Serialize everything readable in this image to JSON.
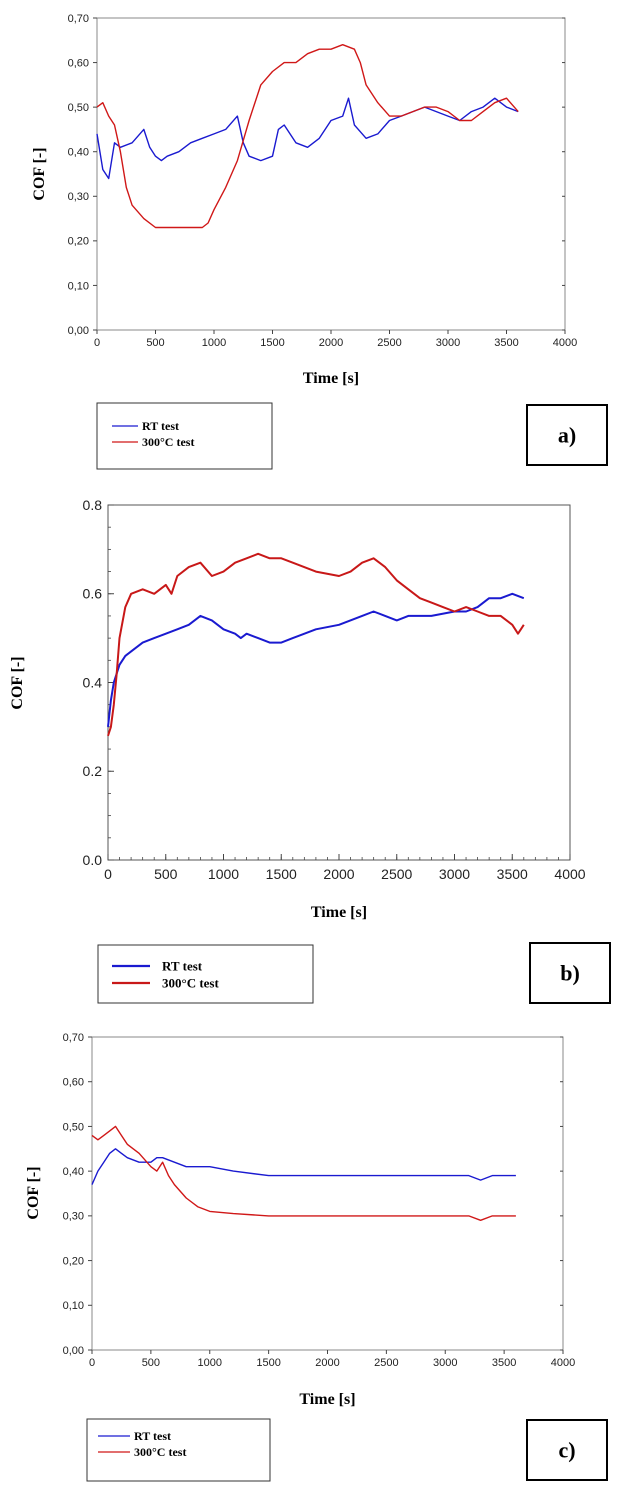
{
  "chart_data": [
    {
      "type": "line",
      "panel_label": "a)",
      "xlabel": "Time [s]",
      "ylabel": "COF [-]",
      "xlim": [
        0,
        4000
      ],
      "ylim": [
        0,
        0.7
      ],
      "x_ticks": [
        0,
        500,
        1000,
        1500,
        2000,
        2500,
        3000,
        3500,
        4000
      ],
      "x_tick_labels": [
        "0",
        "500",
        "1000",
        "1500",
        "2000",
        "2500",
        "3000",
        "3500",
        "4000"
      ],
      "y_ticks": [
        0,
        0.1,
        0.2,
        0.3,
        0.4,
        0.5,
        0.6,
        0.7
      ],
      "y_tick_labels": [
        "0,00",
        "0,10",
        "0,20",
        "0,30",
        "0,40",
        "0,50",
        "0,60",
        "0,70"
      ],
      "grid": false,
      "legend_position": "below-left",
      "series": [
        {
          "name": "RT test",
          "color": "#1a1ad0",
          "x": [
            0,
            50,
            100,
            150,
            200,
            300,
            400,
            450,
            500,
            550,
            600,
            700,
            800,
            900,
            1000,
            1100,
            1200,
            1250,
            1300,
            1400,
            1500,
            1550,
            1600,
            1700,
            1800,
            1900,
            2000,
            2100,
            2150,
            2200,
            2300,
            2400,
            2500,
            2600,
            2700,
            2800,
            2900,
            3000,
            3100,
            3200,
            3300,
            3400,
            3500,
            3600
          ],
          "y": [
            0.44,
            0.36,
            0.34,
            0.42,
            0.41,
            0.42,
            0.45,
            0.41,
            0.39,
            0.38,
            0.39,
            0.4,
            0.42,
            0.43,
            0.44,
            0.45,
            0.48,
            0.42,
            0.39,
            0.38,
            0.39,
            0.45,
            0.46,
            0.42,
            0.41,
            0.43,
            0.47,
            0.48,
            0.52,
            0.46,
            0.43,
            0.44,
            0.47,
            0.48,
            0.49,
            0.5,
            0.49,
            0.48,
            0.47,
            0.49,
            0.5,
            0.52,
            0.5,
            0.49
          ]
        },
        {
          "name": "300°C test",
          "color": "#d01818",
          "x": [
            0,
            50,
            100,
            150,
            200,
            250,
            300,
            400,
            500,
            600,
            700,
            800,
            900,
            950,
            1000,
            1100,
            1200,
            1300,
            1400,
            1500,
            1600,
            1700,
            1800,
            1900,
            2000,
            2100,
            2200,
            2250,
            2300,
            2400,
            2500,
            2600,
            2700,
            2800,
            2900,
            3000,
            3100,
            3200,
            3300,
            3400,
            3500,
            3600
          ],
          "y": [
            0.5,
            0.51,
            0.48,
            0.46,
            0.4,
            0.32,
            0.28,
            0.25,
            0.23,
            0.23,
            0.23,
            0.23,
            0.23,
            0.24,
            0.27,
            0.32,
            0.38,
            0.47,
            0.55,
            0.58,
            0.6,
            0.6,
            0.62,
            0.63,
            0.63,
            0.64,
            0.63,
            0.6,
            0.55,
            0.51,
            0.48,
            0.48,
            0.49,
            0.5,
            0.5,
            0.49,
            0.47,
            0.47,
            0.49,
            0.51,
            0.52,
            0.49
          ]
        }
      ]
    },
    {
      "type": "line",
      "panel_label": "b)",
      "xlabel": "Time [s]",
      "ylabel": "COF [-]",
      "xlim": [
        0,
        4000
      ],
      "ylim": [
        0,
        0.8
      ],
      "x_ticks": [
        0,
        500,
        1000,
        1500,
        2000,
        2500,
        3000,
        3500,
        4000
      ],
      "x_tick_labels": [
        "0",
        "500",
        "1000",
        "1500",
        "2000",
        "2500",
        "3000",
        "3500",
        "4000"
      ],
      "y_ticks": [
        0,
        0.2,
        0.4,
        0.6,
        0.8
      ],
      "y_tick_labels": [
        "0.0",
        "0.2",
        "0.4",
        "0.6",
        "0.8"
      ],
      "grid": false,
      "legend_position": "below-left",
      "series": [
        {
          "name": "RT test",
          "color": "#1a1ad0",
          "x": [
            0,
            25,
            50,
            100,
            150,
            200,
            300,
            400,
            500,
            600,
            700,
            800,
            900,
            1000,
            1100,
            1150,
            1200,
            1300,
            1400,
            1500,
            1600,
            1800,
            2000,
            2200,
            2300,
            2400,
            2500,
            2600,
            2800,
            3000,
            3100,
            3200,
            3300,
            3400,
            3500,
            3600
          ],
          "y": [
            0.3,
            0.36,
            0.4,
            0.44,
            0.46,
            0.47,
            0.49,
            0.5,
            0.51,
            0.52,
            0.53,
            0.55,
            0.54,
            0.52,
            0.51,
            0.5,
            0.51,
            0.5,
            0.49,
            0.49,
            0.5,
            0.52,
            0.53,
            0.55,
            0.56,
            0.55,
            0.54,
            0.55,
            0.55,
            0.56,
            0.56,
            0.57,
            0.59,
            0.59,
            0.6,
            0.59
          ]
        },
        {
          "name": "300°C test",
          "color": "#c81818",
          "x": [
            0,
            25,
            50,
            75,
            100,
            150,
            200,
            300,
            400,
            500,
            550,
            600,
            700,
            800,
            900,
            1000,
            1100,
            1200,
            1300,
            1400,
            1500,
            1600,
            1800,
            2000,
            2100,
            2200,
            2300,
            2400,
            2500,
            2600,
            2700,
            2800,
            2900,
            3000,
            3100,
            3200,
            3300,
            3400,
            3500,
            3550,
            3600
          ],
          "y": [
            0.28,
            0.3,
            0.35,
            0.42,
            0.5,
            0.57,
            0.6,
            0.61,
            0.6,
            0.62,
            0.6,
            0.64,
            0.66,
            0.67,
            0.64,
            0.65,
            0.67,
            0.68,
            0.69,
            0.68,
            0.68,
            0.67,
            0.65,
            0.64,
            0.65,
            0.67,
            0.68,
            0.66,
            0.63,
            0.61,
            0.59,
            0.58,
            0.57,
            0.56,
            0.57,
            0.56,
            0.55,
            0.55,
            0.53,
            0.51,
            0.53
          ]
        }
      ]
    },
    {
      "type": "line",
      "panel_label": "c)",
      "xlabel": "Time [s]",
      "ylabel": "COF [-]",
      "xlim": [
        0,
        4000
      ],
      "ylim": [
        0,
        0.7
      ],
      "x_ticks": [
        0,
        500,
        1000,
        1500,
        2000,
        2500,
        3000,
        3500,
        4000
      ],
      "x_tick_labels": [
        "0",
        "500",
        "1000",
        "1500",
        "2000",
        "2500",
        "3000",
        "3500",
        "4000"
      ],
      "y_ticks": [
        0,
        0.1,
        0.2,
        0.3,
        0.4,
        0.5,
        0.6,
        0.7
      ],
      "y_tick_labels": [
        "0,00",
        "0,10",
        "0,20",
        "0,30",
        "0,40",
        "0,50",
        "0,60",
        "0,70"
      ],
      "grid": false,
      "legend_position": "below-left",
      "series": [
        {
          "name": "RT test",
          "color": "#1a1ad0",
          "x": [
            0,
            50,
            100,
            150,
            200,
            250,
            300,
            400,
            500,
            550,
            600,
            700,
            800,
            1000,
            1200,
            1500,
            1800,
            2000,
            2200,
            2500,
            2800,
            3000,
            3200,
            3300,
            3400,
            3500,
            3600
          ],
          "y": [
            0.37,
            0.4,
            0.42,
            0.44,
            0.45,
            0.44,
            0.43,
            0.42,
            0.42,
            0.43,
            0.43,
            0.42,
            0.41,
            0.41,
            0.4,
            0.39,
            0.39,
            0.39,
            0.39,
            0.39,
            0.39,
            0.39,
            0.39,
            0.38,
            0.39,
            0.39,
            0.39
          ]
        },
        {
          "name": "300°C test",
          "color": "#d01818",
          "x": [
            0,
            50,
            100,
            150,
            200,
            250,
            300,
            400,
            500,
            550,
            600,
            650,
            700,
            800,
            900,
            1000,
            1200,
            1500,
            1800,
            2000,
            2500,
            3000,
            3200,
            3300,
            3400,
            3500,
            3600
          ],
          "y": [
            0.48,
            0.47,
            0.48,
            0.49,
            0.5,
            0.48,
            0.46,
            0.44,
            0.41,
            0.4,
            0.42,
            0.39,
            0.37,
            0.34,
            0.32,
            0.31,
            0.305,
            0.3,
            0.3,
            0.3,
            0.3,
            0.3,
            0.3,
            0.29,
            0.3,
            0.3,
            0.3
          ]
        }
      ]
    }
  ]
}
